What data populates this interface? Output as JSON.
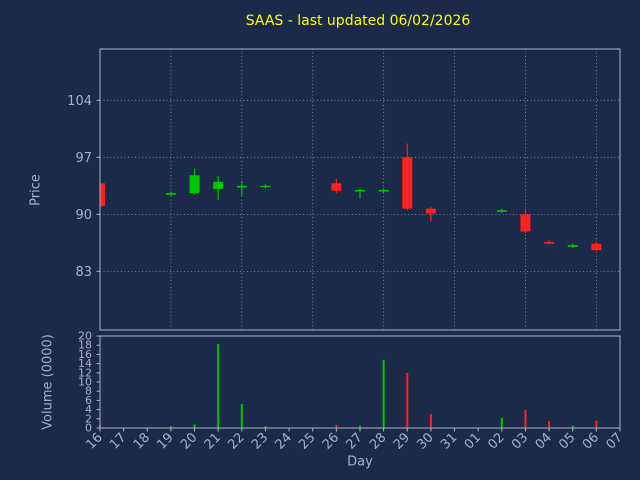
{
  "colors": {
    "background": "#1b2a48",
    "title": "#ffff00",
    "up": "#00c800",
    "down": "#ff2020",
    "grid": "#aab6cf",
    "axis": "#aab6cf",
    "tick_label": "#a6b2cc"
  },
  "chart_data": {
    "type": "candlestick+volume",
    "title": "SAAS - last updated 06/02/2026",
    "xlabel": "Day",
    "ylabel": "Price",
    "ylabel2": "Volume (0000)",
    "x_ticklabels": [
      "16",
      "17",
      "18",
      "19",
      "20",
      "21",
      "22",
      "23",
      "24",
      "25",
      "26",
      "27",
      "28",
      "29",
      "30",
      "31",
      "01",
      "02",
      "03",
      "04",
      "05",
      "06",
      "07"
    ],
    "price_ticks": [
      83,
      90,
      97,
      104
    ],
    "price_range": [
      75.8,
      110.3
    ],
    "volume_ticks": [
      0,
      2,
      4,
      6,
      8,
      10,
      12,
      14,
      16,
      18,
      20
    ],
    "volume_range": [
      0,
      20
    ],
    "grid_day_indices": [
      0,
      3,
      6,
      9,
      12,
      15,
      18,
      21
    ],
    "legend": "none",
    "candles": [
      {
        "i": 0,
        "day": "16",
        "open": 93.8,
        "high": 94.0,
        "low": 90.8,
        "close": 91.0,
        "volume": 0.6
      },
      {
        "i": 3,
        "day": "19",
        "open": 92.4,
        "high": 92.8,
        "low": 92.2,
        "close": 92.6,
        "volume": 0.4
      },
      {
        "i": 4,
        "day": "20",
        "open": 92.6,
        "high": 95.6,
        "low": 92.4,
        "close": 94.8,
        "volume": 0.8
      },
      {
        "i": 5,
        "day": "21",
        "open": 93.1,
        "high": 94.7,
        "low": 91.8,
        "close": 94.0,
        "volume": 18.3
      },
      {
        "i": 6,
        "day": "22",
        "open": 93.3,
        "high": 94.1,
        "low": 92.3,
        "close": 93.5,
        "volume": 5.2
      },
      {
        "i": 7,
        "day": "23",
        "open": 93.4,
        "high": 93.7,
        "low": 93.2,
        "close": 93.5,
        "volume": 0.4
      },
      {
        "i": 10,
        "day": "26",
        "open": 93.8,
        "high": 94.4,
        "low": 92.6,
        "close": 92.9,
        "volume": 0.7
      },
      {
        "i": 11,
        "day": "27",
        "open": 92.8,
        "high": 93.2,
        "low": 91.9,
        "close": 93.0,
        "volume": 0.5
      },
      {
        "i": 12,
        "day": "28",
        "open": 92.8,
        "high": 93.2,
        "low": 92.6,
        "close": 93.0,
        "volume": 14.8
      },
      {
        "i": 13,
        "day": "29",
        "open": 97.0,
        "high": 98.7,
        "low": 90.5,
        "close": 90.7,
        "volume": 12.0
      },
      {
        "i": 14,
        "day": "30",
        "open": 90.7,
        "high": 90.9,
        "low": 89.1,
        "close": 90.1,
        "volume": 3.0
      },
      {
        "i": 17,
        "day": "02",
        "open": 90.3,
        "high": 90.7,
        "low": 90.2,
        "close": 90.5,
        "volume": 2.2
      },
      {
        "i": 18,
        "day": "03",
        "open": 90.0,
        "high": 90.7,
        "low": 87.7,
        "close": 87.9,
        "volume": 4.0
      },
      {
        "i": 19,
        "day": "04",
        "open": 86.6,
        "high": 86.8,
        "low": 86.3,
        "close": 86.4,
        "volume": 1.5
      },
      {
        "i": 20,
        "day": "05",
        "open": 86.0,
        "high": 86.4,
        "low": 85.9,
        "close": 86.2,
        "volume": 0.5
      },
      {
        "i": 21,
        "day": "06",
        "open": 86.4,
        "high": 86.6,
        "low": 85.5,
        "close": 85.6,
        "volume": 1.6
      }
    ]
  }
}
